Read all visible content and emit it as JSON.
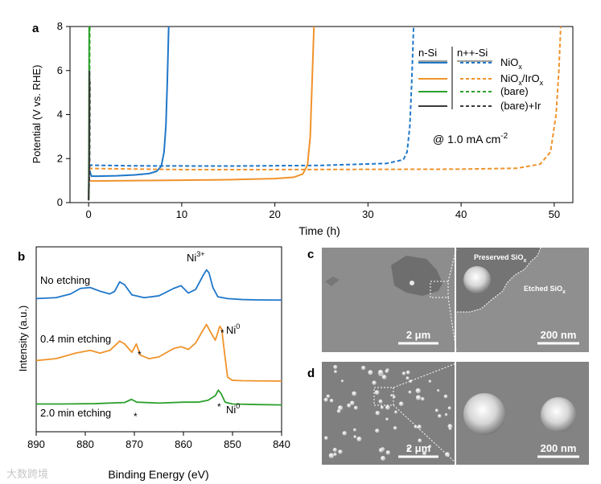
{
  "watermark": "大数跨境",
  "colors": {
    "blue": "#1f77c9",
    "orange": "#f0932b",
    "green": "#2ca02c",
    "dark": "#3a3a3a",
    "sem_bg": "#8c8c8c"
  },
  "chart_data": [
    {
      "panel": "a",
      "type": "line",
      "xlabel": "Time (h)",
      "ylabel": "Potential (V vs. RHE)",
      "xlim": [
        -2,
        52
      ],
      "ylim": [
        0,
        8
      ],
      "xticks": [
        0,
        10,
        20,
        30,
        40,
        50
      ],
      "yticks": [
        0,
        2,
        4,
        6,
        8
      ],
      "annotation": "@ 1.0 mA cm",
      "annotation_sup": "-2",
      "legend": {
        "col1_header": "n-Si",
        "col2_header": "n++-Si",
        "entries": [
          {
            "label": "NiO",
            "sub": "x",
            "color": "blue"
          },
          {
            "label": "NiO",
            "sub": "x",
            "label2": "/IrO",
            "sub2": "x",
            "color": "orange"
          },
          {
            "label": "(bare)",
            "color": "green"
          },
          {
            "label": "(bare)+Ir",
            "color": "dark"
          }
        ]
      },
      "series": [
        {
          "name": "NiOx n-Si",
          "color": "blue",
          "dash": false,
          "points": [
            [
              0,
              1.6
            ],
            [
              0.3,
              1.2
            ],
            [
              1,
              1.2
            ],
            [
              3,
              1.22
            ],
            [
              5,
              1.26
            ],
            [
              6.5,
              1.32
            ],
            [
              7.3,
              1.42
            ],
            [
              7.8,
              1.65
            ],
            [
              8.1,
              2.3
            ],
            [
              8.3,
              3.5
            ],
            [
              8.45,
              5.5
            ],
            [
              8.6,
              8
            ]
          ]
        },
        {
          "name": "NiOx n++-Si",
          "color": "blue",
          "dash": true,
          "points": [
            [
              0,
              1.7
            ],
            [
              5,
              1.67
            ],
            [
              15,
              1.66
            ],
            [
              25,
              1.69
            ],
            [
              32,
              1.78
            ],
            [
              33.8,
              1.95
            ],
            [
              34.2,
              2.3
            ],
            [
              34.5,
              3.5
            ],
            [
              34.7,
              5.5
            ],
            [
              34.9,
              8
            ]
          ]
        },
        {
          "name": "NiOx/IrOx n-Si",
          "color": "orange",
          "dash": false,
          "points": [
            [
              0,
              1.02
            ],
            [
              0.3,
              0.98
            ],
            [
              5,
              1.0
            ],
            [
              10,
              1.02
            ],
            [
              15,
              1.04
            ],
            [
              20,
              1.09
            ],
            [
              22,
              1.15
            ],
            [
              23,
              1.3
            ],
            [
              23.5,
              1.7
            ],
            [
              23.8,
              3
            ],
            [
              24.0,
              5.5
            ],
            [
              24.2,
              8
            ]
          ]
        },
        {
          "name": "NiOx/IrOx n++-Si",
          "color": "orange",
          "dash": true,
          "points": [
            [
              0,
              1.55
            ],
            [
              10,
              1.5
            ],
            [
              20,
              1.5
            ],
            [
              30,
              1.51
            ],
            [
              40,
              1.52
            ],
            [
              46,
              1.56
            ],
            [
              48.5,
              1.75
            ],
            [
              49.6,
              2.3
            ],
            [
              50.2,
              4
            ],
            [
              50.5,
              6
            ],
            [
              50.7,
              8
            ]
          ]
        },
        {
          "name": "bare n-Si",
          "color": "green",
          "dash": false,
          "points": [
            [
              0,
              0.2
            ],
            [
              0.03,
              2
            ],
            [
              0.06,
              8
            ]
          ]
        },
        {
          "name": "bare n++-Si",
          "color": "green",
          "dash": true,
          "points": [
            [
              0,
              0.2
            ],
            [
              0.08,
              2
            ],
            [
              0.12,
              8
            ]
          ]
        },
        {
          "name": "bare+Ir n-Si",
          "color": "dark",
          "dash": false,
          "points": [
            [
              0,
              0.1
            ],
            [
              0.05,
              1.5
            ],
            [
              0.09,
              6
            ]
          ]
        },
        {
          "name": "bare+Ir n++-Si",
          "color": "dark",
          "dash": true,
          "points": [
            [
              0,
              0.1
            ],
            [
              0.1,
              1.5
            ],
            [
              0.14,
              5.5
            ]
          ]
        }
      ]
    },
    {
      "panel": "b",
      "type": "line",
      "xlabel": "Binding Energy (eV)",
      "ylabel": "Intensity (a.u.)",
      "xlim": [
        890,
        840
      ],
      "ylim": [
        0,
        10
      ],
      "xticks": [
        890,
        880,
        870,
        860,
        850,
        840
      ],
      "series": [
        {
          "name": "No etching",
          "color": "blue",
          "points": [
            [
              890,
              7.2
            ],
            [
              886,
              7.25
            ],
            [
              883,
              7.45
            ],
            [
              881,
              7.75
            ],
            [
              879,
              7.8
            ],
            [
              877,
              7.6
            ],
            [
              875,
              7.45
            ],
            [
              874,
              7.6
            ],
            [
              873,
              8.1
            ],
            [
              872,
              7.95
            ],
            [
              870.5,
              7.4
            ],
            [
              868,
              7.25
            ],
            [
              865,
              7.35
            ],
            [
              862,
              7.75
            ],
            [
              860.5,
              7.9
            ],
            [
              859,
              7.5
            ],
            [
              857.5,
              7.7
            ],
            [
              856,
              8.45
            ],
            [
              855.3,
              8.75
            ],
            [
              854.8,
              8.6
            ],
            [
              854,
              7.8
            ],
            [
              853,
              7.3
            ],
            [
              851,
              7.2
            ],
            [
              848,
              7.15
            ],
            [
              845,
              7.13
            ],
            [
              840,
              7.12
            ]
          ]
        },
        {
          "name": "0.4 min etching",
          "color": "orange",
          "points": [
            [
              890,
              3.85
            ],
            [
              886,
              3.95
            ],
            [
              882,
              4.25
            ],
            [
              879,
              4.4
            ],
            [
              877,
              4.25
            ],
            [
              875,
              4.4
            ],
            [
              873,
              4.9
            ],
            [
              872,
              4.75
            ],
            [
              870.5,
              4.3
            ],
            [
              869.6,
              4.75
            ],
            [
              868.8,
              4.15
            ],
            [
              867,
              3.95
            ],
            [
              865,
              4.05
            ],
            [
              862,
              4.5
            ],
            [
              860.5,
              4.6
            ],
            [
              859,
              4.45
            ],
            [
              857.5,
              4.8
            ],
            [
              856,
              5.5
            ],
            [
              855.3,
              5.8
            ],
            [
              854.5,
              5.4
            ],
            [
              853.5,
              4.95
            ],
            [
              852.6,
              5.7
            ],
            [
              852.2,
              5.55
            ],
            [
              851.6,
              4.2
            ],
            [
              851,
              2.95
            ],
            [
              850,
              2.78
            ],
            [
              848,
              2.76
            ],
            [
              845,
              2.75
            ],
            [
              840,
              2.74
            ]
          ]
        },
        {
          "name": "2.0 min etching",
          "color": "green",
          "points": [
            [
              890,
              1.5
            ],
            [
              885,
              1.5
            ],
            [
              878,
              1.52
            ],
            [
              872,
              1.58
            ],
            [
              870.6,
              1.75
            ],
            [
              869.5,
              1.6
            ],
            [
              865,
              1.55
            ],
            [
              860,
              1.6
            ],
            [
              857,
              1.6
            ],
            [
              855,
              1.7
            ],
            [
              853.5,
              1.95
            ],
            [
              852.9,
              2.25
            ],
            [
              852.3,
              2.05
            ],
            [
              851.5,
              1.6
            ],
            [
              850,
              1.5
            ],
            [
              845,
              1.47
            ],
            [
              840,
              1.45
            ]
          ]
        }
      ],
      "labels": {
        "l1": "No etching",
        "l2": "0.4 min etching",
        "l3": "2.0 min etching",
        "ni3": "Ni",
        "ni3_sup": "3+",
        "ni0a": "Ni",
        "ni0a_sup": "0",
        "ni0b": "Ni",
        "ni0b_sup": "0",
        "star": "*"
      }
    }
  ],
  "panels": {
    "a": "a",
    "b": "b",
    "c": "c",
    "d": "d"
  },
  "sem": {
    "c_scale_left": "2 μm",
    "c_scale_right": "200 nm",
    "c_preserved": "Preserved SiO",
    "c_preserved_sub": "x",
    "c_etched": "Etched SiO",
    "c_etched_sub": "x",
    "d_scale_left": "2 μm",
    "d_scale_right": "200 nm"
  }
}
